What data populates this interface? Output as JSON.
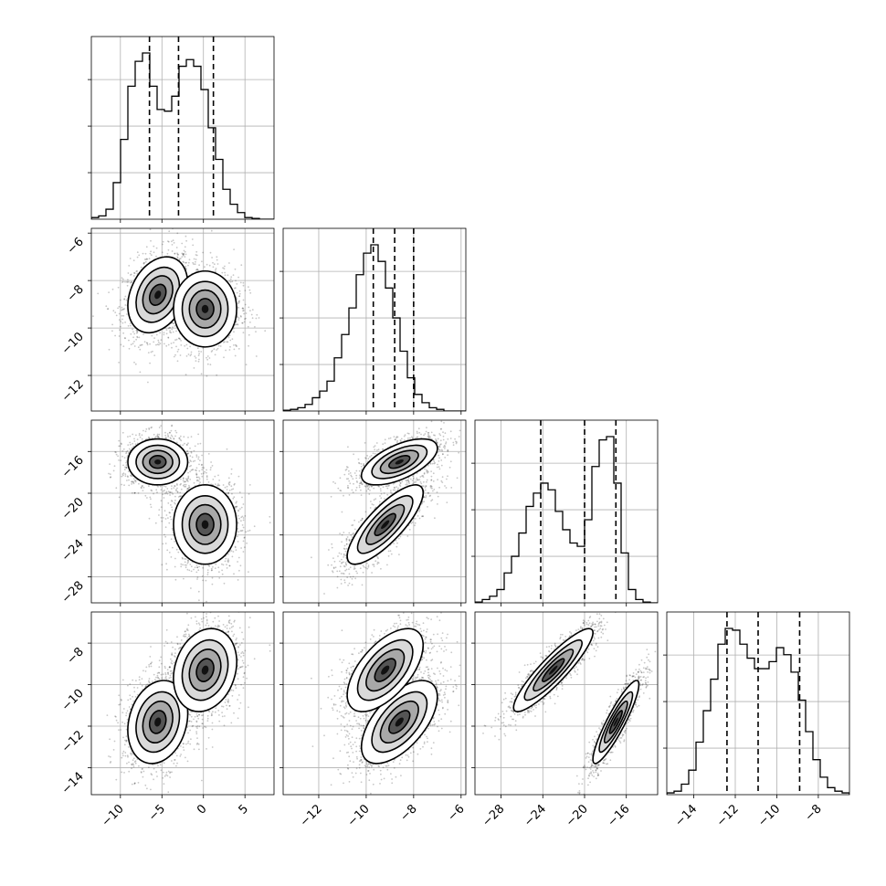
{
  "chart_data": {
    "type": "corner",
    "title": "",
    "grid": true,
    "parameters": [
      {
        "index": 0,
        "range": [
          -13.5,
          8.5
        ],
        "ticks": [
          -10,
          -5,
          0,
          5
        ],
        "tick_labels": [
          "−10",
          "−5",
          "0",
          "5"
        ],
        "quantiles": [
          -6.5,
          -3.0,
          1.2
        ],
        "modes": [
          {
            "mean": -5.5,
            "sd": 1.8,
            "weight": 0.5
          },
          {
            "mean": 0.2,
            "sd": 1.9,
            "weight": 0.5
          }
        ]
      },
      {
        "index": 1,
        "range": [
          -13.5,
          -5.8
        ],
        "ticks": [
          -12,
          -10,
          -8,
          -6
        ],
        "tick_labels": [
          "−12",
          "−10",
          "−8",
          "−6"
        ],
        "quantiles": [
          -9.7,
          -8.8,
          -8.0
        ],
        "modes": [
          {
            "mean": -8.6,
            "sd": 0.8,
            "weight": 0.5
          },
          {
            "mean": -9.2,
            "sd": 0.8,
            "weight": 0.5
          }
        ]
      },
      {
        "index": 2,
        "range": [
          -30.5,
          -13.0
        ],
        "ticks": [
          -28,
          -24,
          -20,
          -16
        ],
        "tick_labels": [
          "−28",
          "−24",
          "−20",
          "−16"
        ],
        "quantiles": [
          -24.2,
          -20.0,
          -17.0
        ],
        "modes": [
          {
            "mean": -17.0,
            "sd": 1.1,
            "weight": 0.5
          },
          {
            "mean": -23.0,
            "sd": 1.9,
            "weight": 0.5
          }
        ]
      },
      {
        "index": 3,
        "range": [
          -15.3,
          -6.5
        ],
        "ticks": [
          -14,
          -12,
          -10,
          -8
        ],
        "tick_labels": [
          "−14",
          "−12",
          "−10",
          "−8"
        ],
        "quantiles": [
          -12.4,
          -10.9,
          -8.9
        ],
        "modes": [
          {
            "mean": -11.8,
            "sd": 1.0,
            "weight": 0.5
          },
          {
            "mean": -9.3,
            "sd": 1.0,
            "weight": 0.5
          }
        ]
      }
    ],
    "histograms": [
      {
        "param": 0,
        "bins": 25,
        "counts": [
          0.01,
          0.02,
          0.06,
          0.22,
          0.48,
          0.8,
          0.95,
          1.0,
          0.8,
          0.66,
          0.65,
          0.74,
          0.92,
          0.96,
          0.92,
          0.78,
          0.55,
          0.36,
          0.18,
          0.09,
          0.04,
          0.01,
          0.005,
          0,
          0
        ]
      },
      {
        "param": 1,
        "bins": 25,
        "counts": [
          0.005,
          0.01,
          0.02,
          0.04,
          0.08,
          0.12,
          0.18,
          0.32,
          0.46,
          0.62,
          0.82,
          0.95,
          1.0,
          0.9,
          0.74,
          0.56,
          0.36,
          0.2,
          0.1,
          0.05,
          0.02,
          0.01,
          0,
          0,
          0
        ]
      },
      {
        "param": 2,
        "bins": 25,
        "counts": [
          0.005,
          0.02,
          0.04,
          0.08,
          0.18,
          0.28,
          0.42,
          0.58,
          0.66,
          0.72,
          0.68,
          0.55,
          0.44,
          0.36,
          0.34,
          0.5,
          0.82,
          0.98,
          1.0,
          0.72,
          0.3,
          0.08,
          0.02,
          0.005,
          0
        ]
      },
      {
        "param": 3,
        "bins": 25,
        "counts": [
          0.01,
          0.02,
          0.06,
          0.14,
          0.3,
          0.48,
          0.66,
          0.86,
          0.95,
          0.94,
          0.86,
          0.78,
          0.72,
          0.72,
          0.76,
          0.84,
          0.8,
          0.7,
          0.54,
          0.36,
          0.2,
          0.1,
          0.04,
          0.02,
          0.01
        ]
      }
    ],
    "pairs": [
      {
        "x_param": 0,
        "y_param": 1,
        "modes": [
          {
            "mx": -5.5,
            "my": -8.6,
            "sx": 1.8,
            "sy": 0.8,
            "rho": 0.3
          },
          {
            "mx": 0.2,
            "my": -9.2,
            "sx": 1.9,
            "sy": 0.8,
            "rho": 0.0
          }
        ]
      },
      {
        "x_param": 0,
        "y_param": 2,
        "modes": [
          {
            "mx": -5.5,
            "my": -17.0,
            "sx": 1.8,
            "sy": 1.1,
            "rho": 0.0
          },
          {
            "mx": 0.2,
            "my": -23.0,
            "sx": 1.9,
            "sy": 1.9,
            "rho": 0.0
          }
        ]
      },
      {
        "x_param": 1,
        "y_param": 2,
        "modes": [
          {
            "mx": -8.6,
            "my": -17.0,
            "sx": 0.8,
            "sy": 1.1,
            "rho": 0.6
          },
          {
            "mx": -9.2,
            "my": -23.0,
            "sx": 0.8,
            "sy": 1.9,
            "rho": 0.8
          }
        ]
      },
      {
        "x_param": 0,
        "y_param": 3,
        "modes": [
          {
            "mx": -5.5,
            "my": -11.8,
            "sx": 1.8,
            "sy": 1.0,
            "rho": 0.2
          },
          {
            "mx": 0.2,
            "my": -9.3,
            "sx": 1.9,
            "sy": 1.0,
            "rho": 0.2
          }
        ]
      },
      {
        "x_param": 1,
        "y_param": 3,
        "modes": [
          {
            "mx": -8.6,
            "my": -11.8,
            "sx": 0.8,
            "sy": 1.0,
            "rho": 0.6
          },
          {
            "mx": -9.2,
            "my": -9.3,
            "sx": 0.8,
            "sy": 1.0,
            "rho": 0.6
          }
        ]
      },
      {
        "x_param": 2,
        "y_param": 3,
        "modes": [
          {
            "mx": -17.0,
            "my": -11.8,
            "sx": 1.1,
            "sy": 1.0,
            "rho": 0.9
          },
          {
            "mx": -23.0,
            "my": -9.3,
            "sx": 1.9,
            "sy": 1.0,
            "rho": 0.9
          }
        ]
      }
    ]
  }
}
